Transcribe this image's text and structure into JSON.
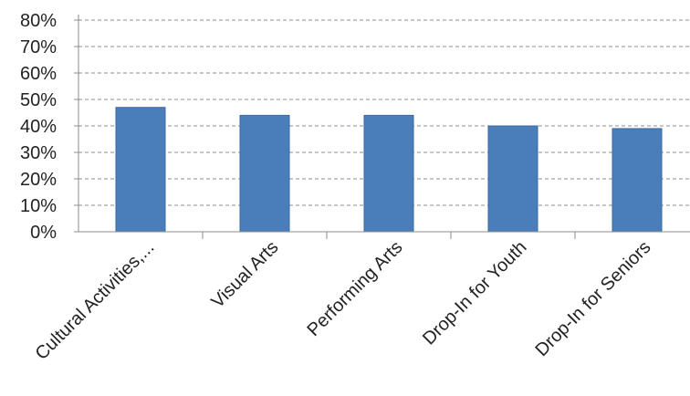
{
  "chart_data": {
    "type": "bar",
    "categories": [
      "Cultural Activities,...",
      "Visual Arts",
      "Performing Arts",
      "Drop-In  for Youth",
      "Drop-In  for Seniors"
    ],
    "values": [
      47,
      44,
      44,
      40,
      39
    ],
    "y_ticks": [
      "0%",
      "10%",
      "20%",
      "30%",
      "40%",
      "50%",
      "60%",
      "70%",
      "80%"
    ],
    "ylim": [
      0,
      80
    ],
    "grid": true,
    "legend": "none",
    "colors": {
      "bar": "#4a7ebb",
      "bar_stroke": "#3d6ba3",
      "grid": "#8c8c8c",
      "axis": "#8c8c8c",
      "text": "#222222"
    }
  }
}
